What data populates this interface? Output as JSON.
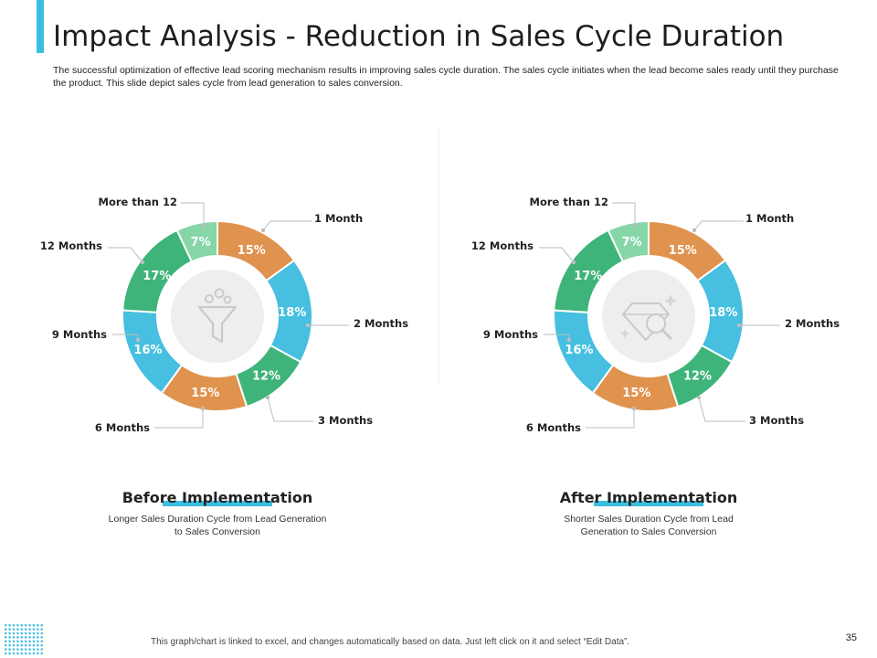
{
  "header": {
    "title": "Impact Analysis - Reduction in Sales Cycle Duration",
    "description": "The successful optimization of effective lead scoring mechanism results in improving sales cycle duration. The sales cycle initiates when the lead become sales ready until they purchase the product. This slide depict sales cycle from lead generation to sales conversion."
  },
  "colors": {
    "accent": "#3bbfe0",
    "orange": "#e0924f",
    "blue": "#46bfe0",
    "green": "#3fb47a",
    "light_green": "#86d6a8"
  },
  "chart_data": [
    {
      "type": "pie",
      "style": "donut",
      "title": "Before Implementation",
      "caption": "Longer Sales Duration Cycle from Lead Generation to Sales Conversion",
      "center_icon": "funnel-icon",
      "categories": [
        "1 Month",
        "2 Months",
        "3 Months",
        "6 Months",
        "9 Months",
        "12 Months",
        "More than 12"
      ],
      "values": [
        15,
        18,
        12,
        15,
        16,
        17,
        7
      ],
      "value_labels": [
        "15%",
        "18%",
        "12%",
        "15%",
        "16%",
        "17%",
        "7%"
      ],
      "segment_colors": [
        "#e0924f",
        "#46bfe0",
        "#3fb47a",
        "#e0924f",
        "#46bfe0",
        "#3fb47a",
        "#86d6a8"
      ]
    },
    {
      "type": "pie",
      "style": "donut",
      "title": "After Implementation",
      "caption": "Shorter Sales Duration Cycle from Lead Generation to Sales Conversion",
      "center_icon": "diamond-search-icon",
      "categories": [
        "1 Month",
        "2 Months",
        "3 Months",
        "6 Months",
        "9 Months",
        "12 Months",
        "More than 12"
      ],
      "values": [
        15,
        18,
        12,
        15,
        16,
        17,
        7
      ],
      "value_labels": [
        "15%",
        "18%",
        "12%",
        "15%",
        "16%",
        "17%",
        "7%"
      ],
      "segment_colors": [
        "#e0924f",
        "#46bfe0",
        "#3fb47a",
        "#e0924f",
        "#46bfe0",
        "#3fb47a",
        "#86d6a8"
      ]
    }
  ],
  "footer": {
    "note": "This graph/chart is linked to excel, and changes automatically based on data. Just left click on it and select “Edit Data”.",
    "page_number": "35"
  }
}
